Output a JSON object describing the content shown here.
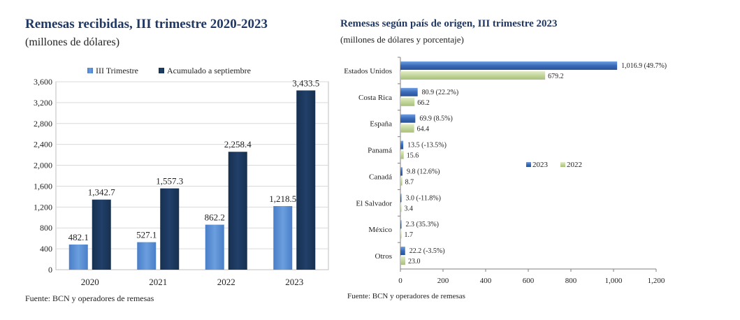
{
  "left_panel": {
    "title": "Remesas recibidas, III trimestre 2020-2023",
    "subtitle": "(millones de dólares)",
    "source": "Fuente: BCN y operadores de remesas"
  },
  "right_panel": {
    "title": "Remesas según país de origen, III trimestre 2023",
    "subtitle": "(millones de dólares y porcentaje)",
    "source": "Fuente: BCN y operadores de remesas"
  },
  "colors": {
    "light_blue": "#5b8fd4",
    "dark_navy": "#1c355e",
    "blue_2023": "#3f72c0",
    "green_2022": "#c3d69b",
    "grid": "#d9d9d9"
  },
  "chart_data": [
    {
      "type": "bar",
      "title": "Remesas recibidas, III trimestre 2020-2023",
      "categories": [
        "2020",
        "2021",
        "2022",
        "2023"
      ],
      "series": [
        {
          "name": "III Trimestre",
          "values": [
            482.1,
            527.1,
            862.2,
            1218.5
          ],
          "labels": [
            "482.1",
            "527.1",
            "862.2",
            "1,218.5"
          ]
        },
        {
          "name": "Acumulado a septiembre",
          "values": [
            1342.7,
            1557.3,
            2258.4,
            3433.5
          ],
          "labels": [
            "1,342.7",
            "1,557.3",
            "2,258.4",
            "3,433.5"
          ]
        }
      ],
      "ylim": [
        0,
        3600
      ],
      "yticks": [
        "0",
        "400",
        "800",
        "1,200",
        "1,600",
        "2,000",
        "2,400",
        "2,800",
        "3,200",
        "3,600"
      ],
      "ytick_values": [
        0,
        400,
        800,
        1200,
        1600,
        2000,
        2400,
        2800,
        3200,
        3600
      ],
      "grid": true,
      "legend": "top"
    },
    {
      "type": "bar",
      "orientation": "horizontal",
      "title": "Remesas según país de origen, III trimestre 2023",
      "categories": [
        "Estados Unidos",
        "Costa Rica",
        "España",
        "Panamá",
        "Canadá",
        "El Salvador",
        "México",
        "Otros"
      ],
      "series": [
        {
          "name": "2023",
          "values": [
            1016.9,
            80.9,
            69.9,
            13.5,
            9.8,
            3.0,
            2.3,
            22.2
          ],
          "labels": [
            "1,016.9",
            "80.9",
            "69.9",
            "13.5",
            "9.8",
            "3.0",
            "2.3",
            "22.2"
          ],
          "pct_labels": [
            "(49.7%)",
            "(22.2%)",
            "(8.5%)",
            "(-13.5%)",
            "(12.6%)",
            "(-11.8%)",
            "(35.3%)",
            "(-3.5%)"
          ]
        },
        {
          "name": "2022",
          "values": [
            679.2,
            66.2,
            64.4,
            15.6,
            8.7,
            3.4,
            1.7,
            23.0
          ],
          "labels": [
            "679.2",
            "66.2",
            "64.4",
            "15.6",
            "8.7",
            "3.4",
            "1.7",
            "23.0"
          ]
        }
      ],
      "xlim": [
        0,
        1200
      ],
      "xticks": [
        "0",
        "200",
        "400",
        "600",
        "800",
        "1,000",
        "1,200"
      ],
      "xtick_values": [
        0,
        200,
        400,
        600,
        800,
        1000,
        1200
      ],
      "grid": false,
      "legend": "center-right"
    }
  ]
}
